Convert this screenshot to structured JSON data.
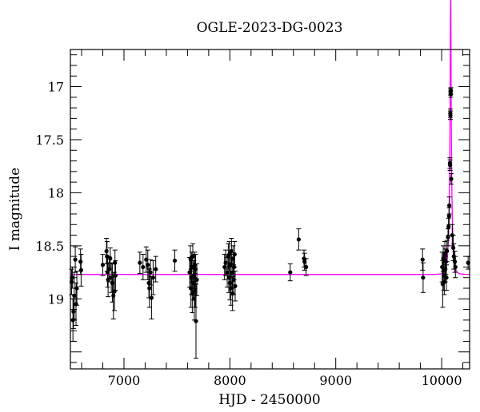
{
  "chart_data": {
    "type": "scatter",
    "title": "OGLE-2023-DG-0023",
    "xlabel": "HJD - 2450000",
    "ylabel": "I magnitude",
    "xlim": [
      6494,
      10264
    ],
    "ylim": [
      19.66,
      16.65
    ],
    "y_inverted": true,
    "x_ticks": [
      7000,
      8000,
      9000,
      10000
    ],
    "y_ticks": [
      17,
      17.5,
      18,
      18.5,
      19
    ],
    "colors": {
      "points": "#000000",
      "model": "#ff00ff"
    },
    "points": [
      [
        6505,
        18.84,
        0.12
      ],
      [
        6512,
        18.8,
        0.1
      ],
      [
        6518,
        19.2,
        0.2
      ],
      [
        6523,
        19.12,
        0.16
      ],
      [
        6530,
        18.97,
        0.22
      ],
      [
        6540,
        18.63,
        0.12
      ],
      [
        6547,
        19.05,
        0.2
      ],
      [
        6555,
        18.9,
        0.16
      ],
      [
        6590,
        18.65,
        0.12
      ],
      [
        6595,
        18.73,
        0.15
      ],
      [
        6800,
        18.68,
        0.1
      ],
      [
        6835,
        18.55,
        0.12
      ],
      [
        6840,
        18.6,
        0.14
      ],
      [
        6845,
        18.75,
        0.14
      ],
      [
        6850,
        18.82,
        0.16
      ],
      [
        6860,
        18.72,
        0.12
      ],
      [
        6870,
        18.62,
        0.1
      ],
      [
        6880,
        18.8,
        0.14
      ],
      [
        6890,
        18.85,
        0.18
      ],
      [
        6900,
        18.97,
        0.22
      ],
      [
        6910,
        18.93,
        0.18
      ],
      [
        6915,
        18.66,
        0.12
      ],
      [
        6920,
        18.78,
        0.14
      ],
      [
        7150,
        18.66,
        0.1
      ],
      [
        7180,
        18.7,
        0.12
      ],
      [
        7210,
        18.63,
        0.12
      ],
      [
        7225,
        18.68,
        0.14
      ],
      [
        7235,
        18.85,
        0.14
      ],
      [
        7240,
        18.9,
        0.18
      ],
      [
        7250,
        18.75,
        0.12
      ],
      [
        7260,
        18.99,
        0.2
      ],
      [
        7275,
        18.8,
        0.16
      ],
      [
        7300,
        18.72,
        0.12
      ],
      [
        7480,
        18.64,
        0.1
      ],
      [
        7620,
        18.75,
        0.14
      ],
      [
        7628,
        18.62,
        0.12
      ],
      [
        7632,
        18.9,
        0.18
      ],
      [
        7636,
        18.8,
        0.16
      ],
      [
        7640,
        18.7,
        0.14
      ],
      [
        7645,
        18.95,
        0.18
      ],
      [
        7650,
        18.6,
        0.12
      ],
      [
        7655,
        18.85,
        0.16
      ],
      [
        7660,
        18.78,
        0.14
      ],
      [
        7664,
        19.0,
        0.2
      ],
      [
        7668,
        18.68,
        0.12
      ],
      [
        7672,
        18.92,
        0.16
      ],
      [
        7676,
        18.72,
        0.14
      ],
      [
        7680,
        19.21,
        0.35
      ],
      [
        7688,
        18.82,
        0.15
      ],
      [
        7950,
        18.7,
        0.12
      ],
      [
        7960,
        18.66,
        0.12
      ],
      [
        7975,
        18.75,
        0.14
      ],
      [
        7985,
        18.6,
        0.12
      ],
      [
        7990,
        18.8,
        0.14
      ],
      [
        7995,
        18.58,
        0.12
      ],
      [
        8000,
        18.85,
        0.16
      ],
      [
        8005,
        18.68,
        0.12
      ],
      [
        8010,
        18.9,
        0.16
      ],
      [
        8015,
        18.55,
        0.12
      ],
      [
        8020,
        18.76,
        0.14
      ],
      [
        8025,
        18.95,
        0.16
      ],
      [
        8030,
        18.62,
        0.12
      ],
      [
        8035,
        18.82,
        0.14
      ],
      [
        8040,
        18.7,
        0.12
      ],
      [
        8045,
        18.58,
        0.12
      ],
      [
        8050,
        18.88,
        0.14
      ],
      [
        8570,
        18.75,
        0.08
      ],
      [
        8650,
        18.44,
        0.1
      ],
      [
        8700,
        18.62,
        0.08
      ],
      [
        8705,
        18.65,
        0.08
      ],
      [
        8720,
        18.7,
        0.08
      ],
      [
        9820,
        18.63,
        0.1
      ],
      [
        9825,
        18.8,
        0.14
      ],
      [
        10005,
        18.7,
        0.14
      ],
      [
        10010,
        18.86,
        0.22
      ],
      [
        10015,
        18.62,
        0.12
      ],
      [
        10020,
        18.78,
        0.14
      ],
      [
        10025,
        18.84,
        0.12
      ],
      [
        10030,
        18.58,
        0.12
      ],
      [
        10035,
        18.72,
        0.12
      ],
      [
        10040,
        18.65,
        0.12
      ],
      [
        10045,
        18.8,
        0.12
      ],
      [
        10050,
        18.55,
        0.1
      ],
      [
        10060,
        18.42,
        0.08
      ],
      [
        10065,
        18.32,
        0.08
      ],
      [
        10070,
        18.22,
        0.08
      ],
      [
        10072,
        18.12,
        0.08
      ],
      [
        10078,
        17.72,
        0.05
      ],
      [
        10080,
        17.74,
        0.05
      ],
      [
        10082,
        17.25,
        0.04
      ],
      [
        10083,
        17.27,
        0.04
      ],
      [
        10084,
        17.05,
        0.03
      ],
      [
        10086,
        17.07,
        0.03
      ],
      [
        10087,
        17.04,
        0.03
      ],
      [
        10090,
        17.87,
        0.05
      ],
      [
        10100,
        18.4,
        0.1
      ],
      [
        10110,
        18.52,
        0.12
      ],
      [
        10115,
        18.6,
        0.12
      ],
      [
        10130,
        18.7,
        0.1
      ],
      [
        10125,
        18.65,
        0.1
      ],
      [
        10250,
        18.66,
        0.06
      ]
    ],
    "model": {
      "t0": 10085,
      "baseline": 18.77,
      "tE": 22,
      "u0": 0.045
    }
  }
}
